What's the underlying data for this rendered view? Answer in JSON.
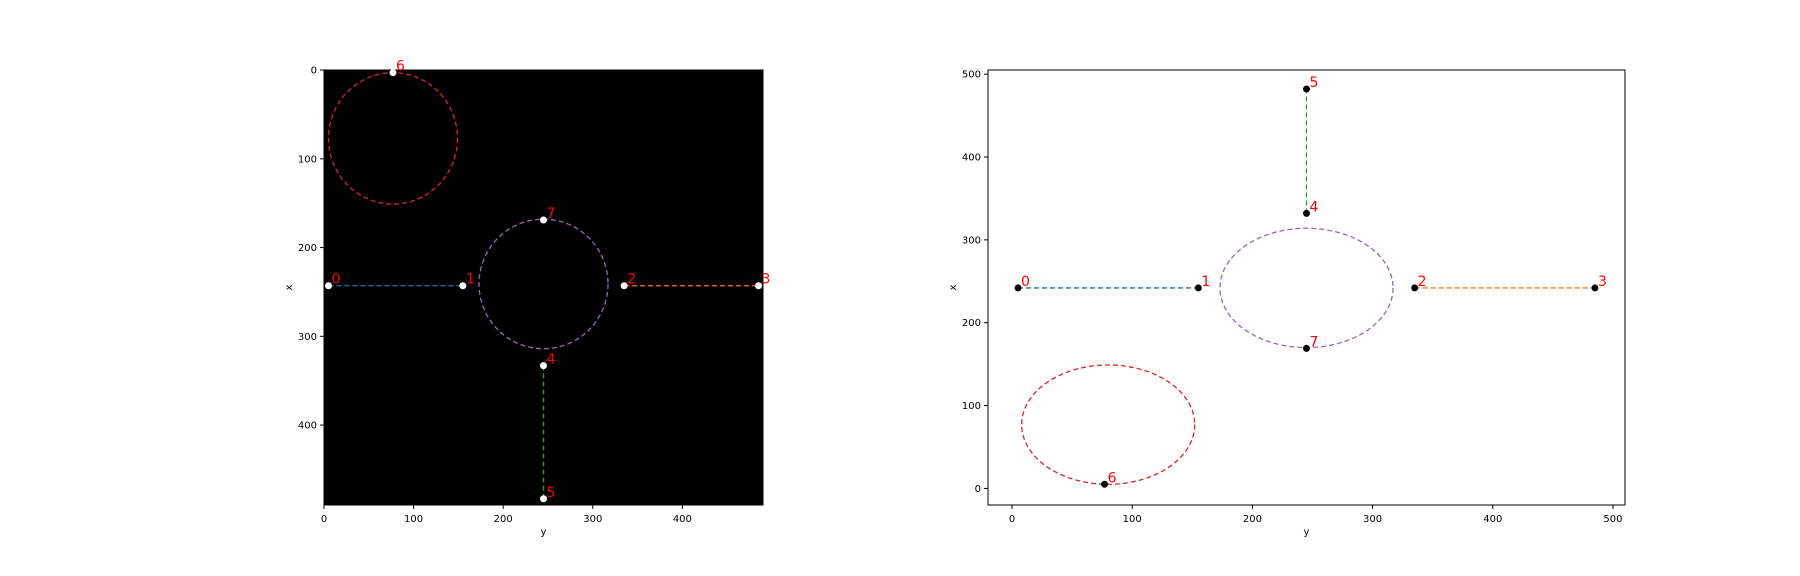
{
  "chart_data": [
    {
      "type": "scatter",
      "background": "#000000",
      "xlabel": "y",
      "ylabel": "x",
      "xlim": [
        0,
        490
      ],
      "ylim": [
        490,
        0
      ],
      "x_ticks": [
        0,
        100,
        200,
        300,
        400
      ],
      "y_ticks": [
        0,
        100,
        200,
        300,
        400
      ],
      "marker_color": "#ffffff",
      "label_color": "#ff0000",
      "points": [
        {
          "id": "0",
          "x": 5,
          "y": 243
        },
        {
          "id": "1",
          "x": 155,
          "y": 243
        },
        {
          "id": "2",
          "x": 335,
          "y": 243
        },
        {
          "id": "3",
          "x": 485,
          "y": 243
        },
        {
          "id": "4",
          "x": 245,
          "y": 333
        },
        {
          "id": "5",
          "x": 245,
          "y": 483
        },
        {
          "id": "6",
          "x": 77,
          "y": 3
        },
        {
          "id": "7",
          "x": 245,
          "y": 169
        }
      ],
      "series": [
        {
          "type": "segment",
          "color": "#1f77b4",
          "from": [
            5,
            243
          ],
          "to": [
            155,
            243
          ]
        },
        {
          "type": "segment",
          "color": "#ff7f0e",
          "from": [
            335,
            243
          ],
          "to": [
            485,
            243
          ]
        },
        {
          "type": "segment",
          "color": "#2ca02c",
          "from": [
            245,
            333
          ],
          "to": [
            245,
            483
          ]
        },
        {
          "type": "ellipse",
          "color": "#d62728",
          "center": [
            77,
            77
          ],
          "radius": [
            72,
            74
          ]
        },
        {
          "type": "ellipse",
          "color": "#9467bd",
          "center": [
            245,
            241
          ],
          "radius": [
            72,
            73
          ]
        }
      ]
    },
    {
      "type": "scatter",
      "background": "#ffffff",
      "xlabel": "y",
      "ylabel": "x",
      "xlim": [
        -20,
        510
      ],
      "ylim": [
        -20,
        505
      ],
      "x_ticks": [
        0,
        100,
        200,
        300,
        400,
        500
      ],
      "y_ticks": [
        0,
        100,
        200,
        300,
        400,
        500
      ],
      "marker_color": "#000000",
      "label_color": "#ff0000",
      "points": [
        {
          "id": "0",
          "x": 5,
          "y": 242
        },
        {
          "id": "1",
          "x": 155,
          "y": 242
        },
        {
          "id": "2",
          "x": 335,
          "y": 242
        },
        {
          "id": "3",
          "x": 485,
          "y": 242
        },
        {
          "id": "4",
          "x": 245,
          "y": 332
        },
        {
          "id": "5",
          "x": 245,
          "y": 482
        },
        {
          "id": "6",
          "x": 77,
          "y": 5
        },
        {
          "id": "7",
          "x": 245,
          "y": 169
        }
      ],
      "series": [
        {
          "type": "segment",
          "color": "#1f77b4",
          "from": [
            5,
            242
          ],
          "to": [
            155,
            242
          ]
        },
        {
          "type": "segment",
          "color": "#ff7f0e",
          "from": [
            335,
            242
          ],
          "to": [
            485,
            242
          ]
        },
        {
          "type": "segment",
          "color": "#2ca02c",
          "from": [
            245,
            332
          ],
          "to": [
            245,
            482
          ]
        },
        {
          "type": "ellipse",
          "color": "#d62728",
          "center": [
            80,
            77
          ],
          "radius": [
            72,
            72
          ]
        },
        {
          "type": "ellipse",
          "color": "#9467bd",
          "center": [
            245,
            242
          ],
          "radius": [
            72,
            72
          ]
        }
      ]
    }
  ]
}
